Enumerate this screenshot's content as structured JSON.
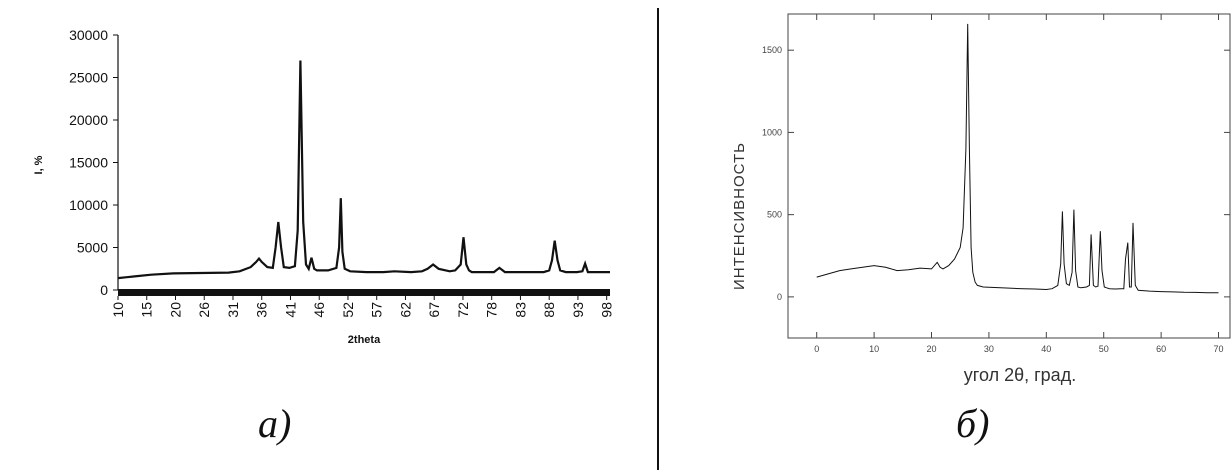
{
  "captions": {
    "a": "а)",
    "b": "б)"
  },
  "chart_data": [
    {
      "type": "line",
      "xlabel": "2theta",
      "ylabel": "I, %",
      "xlim": [
        10,
        99
      ],
      "ylim": [
        0,
        30000
      ],
      "y_ticks": [
        "0",
        "5000",
        "10000",
        "15000",
        "20000",
        "25000",
        "30000"
      ],
      "x_ticks": [
        "10",
        "15",
        "20",
        "26",
        "31",
        "36",
        "41",
        "46",
        "52",
        "57",
        "62",
        "67",
        "72",
        "78",
        "83",
        "88",
        "93",
        "98"
      ],
      "x_tick_values": [
        10,
        15.2,
        20.4,
        25.6,
        30.8,
        36,
        41.2,
        46.4,
        51.6,
        56.8,
        62,
        67.2,
        72.4,
        77.6,
        82.8,
        88,
        93.2,
        98.4
      ],
      "x": [
        10,
        13,
        16,
        20,
        25,
        30,
        32,
        34,
        35,
        35.5,
        36,
        37,
        38,
        38.5,
        39,
        39.5,
        40,
        41,
        42,
        42.5,
        43,
        43.5,
        44,
        44.5,
        45,
        45.5,
        46,
        48,
        49.5,
        50,
        50.3,
        50.6,
        51,
        52,
        55,
        58,
        60,
        63,
        65,
        66,
        67,
        68,
        70,
        71,
        72,
        72.5,
        73,
        73.5,
        74,
        75,
        77,
        78,
        79,
        80,
        82,
        85,
        87,
        88,
        88.5,
        89,
        89.5,
        90,
        91,
        93,
        94,
        94.5,
        95,
        96,
        98,
        99
      ],
      "y": [
        1400,
        1600,
        1800,
        1950,
        2000,
        2050,
        2200,
        2700,
        3300,
        3700,
        3300,
        2700,
        2600,
        5000,
        8000,
        5000,
        2700,
        2600,
        2800,
        7000,
        27000,
        8000,
        3000,
        2500,
        3800,
        2500,
        2300,
        2300,
        2600,
        5000,
        10800,
        4500,
        2500,
        2200,
        2100,
        2100,
        2200,
        2100,
        2200,
        2500,
        3000,
        2500,
        2200,
        2300,
        3000,
        6200,
        3000,
        2300,
        2100,
        2100,
        2100,
        2100,
        2600,
        2100,
        2100,
        2100,
        2100,
        2300,
        3500,
        5800,
        3500,
        2300,
        2100,
        2100,
        2200,
        3100,
        2100,
        2100,
        2100,
        2100
      ]
    },
    {
      "type": "line",
      "xlabel": "угол 2θ, град.",
      "ylabel": "ИНТЕНСИВНОСТЬ",
      "xlim": [
        -5,
        72
      ],
      "ylim": [
        -250,
        1720
      ],
      "y_ticks": [
        "0",
        "500",
        "1000",
        "1500"
      ],
      "y_tick_values": [
        0,
        500,
        1000,
        1500
      ],
      "x_ticks": [
        "0",
        "10",
        "20",
        "30",
        "40",
        "50",
        "60",
        "70"
      ],
      "x_tick_values": [
        0,
        10,
        20,
        30,
        40,
        50,
        60,
        70
      ],
      "x": [
        0,
        2,
        4,
        6,
        8,
        10,
        12,
        14,
        16,
        18,
        20,
        21,
        21.5,
        22,
        23,
        24,
        25,
        25.5,
        26,
        26.3,
        26.6,
        26.9,
        27.2,
        27.6,
        28,
        29,
        30,
        32,
        34,
        36,
        38,
        40,
        41,
        42,
        42.5,
        42.8,
        43.1,
        43.5,
        44,
        44.5,
        44.8,
        45.1,
        45.5,
        46,
        47,
        47.5,
        47.8,
        48.2,
        48.6,
        49,
        49.4,
        49.7,
        50.1,
        50.5,
        51,
        52,
        53,
        53.5,
        53.8,
        54.2,
        54.5,
        54.8,
        55.1,
        55.5,
        56,
        58,
        60,
        62,
        64,
        66,
        68,
        70
      ],
      "y": [
        120,
        140,
        160,
        170,
        180,
        190,
        180,
        160,
        165,
        175,
        170,
        210,
        180,
        170,
        190,
        230,
        300,
        420,
        900,
        1660,
        900,
        300,
        150,
        90,
        70,
        60,
        58,
        55,
        52,
        50,
        48,
        45,
        50,
        70,
        200,
        520,
        200,
        80,
        70,
        150,
        530,
        160,
        60,
        55,
        60,
        70,
        380,
        70,
        60,
        65,
        400,
        160,
        60,
        55,
        50,
        48,
        50,
        50,
        230,
        330,
        60,
        60,
        450,
        70,
        40,
        35,
        32,
        30,
        28,
        27,
        25,
        25
      ]
    }
  ]
}
